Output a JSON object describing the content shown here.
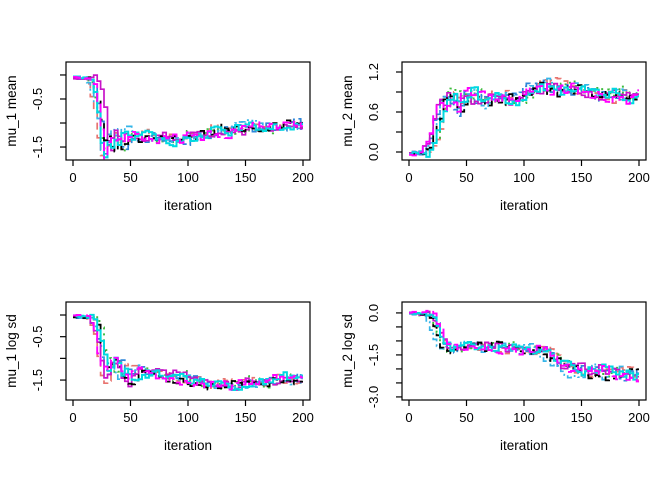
{
  "figure": {
    "background": "#ffffff",
    "axis_color": "#000000",
    "tick_font_size": 13,
    "title_font_size": 13.5
  },
  "series_style": [
    {
      "name": "chain-salmon",
      "color": "#E8736F",
      "dash": "7,5",
      "width": 1.7
    },
    {
      "name": "chain-green",
      "color": "#3CBB3C",
      "dash": "2,4",
      "width": 1.9
    },
    {
      "name": "chain-blue",
      "color": "#2E86D9",
      "dash": "8,4",
      "width": 1.7
    },
    {
      "name": "chain-skyblue",
      "color": "#35B5E8",
      "dash": "2,3,7,3",
      "width": 1.7
    },
    {
      "name": "chain-darkmagenta",
      "color": "#C813C8",
      "dash": "",
      "width": 1.7
    },
    {
      "name": "chain-black",
      "color": "#000000",
      "dash": "8,5",
      "width": 1.8
    },
    {
      "name": "chain-cyan",
      "color": "#00D9E0",
      "dash": "",
      "width": 2.0
    },
    {
      "name": "chain-magenta",
      "color": "#FF00FF",
      "dash": "9,5",
      "width": 1.9
    }
  ],
  "gen": {
    "hold": 3,
    "seed": 1234,
    "ar": 0.55
  },
  "chart_data": [
    {
      "type": "line",
      "ylabel": "mu_1 mean",
      "xlabel": "iteration",
      "xlim": [
        0,
        200
      ],
      "xticks": [
        {
          "v": 0,
          "label": "0"
        },
        {
          "v": 50,
          "label": "50"
        },
        {
          "v": 100,
          "label": "100"
        },
        {
          "v": 150,
          "label": "150"
        },
        {
          "v": 200,
          "label": "200"
        }
      ],
      "ylim": [
        -1.77,
        0.27
      ],
      "yticks": [
        {
          "v": 0.0,
          "label": ""
        },
        {
          "v": -0.5,
          "label": "-0.5"
        },
        {
          "v": -1.0,
          "label": ""
        },
        {
          "v": -1.5,
          "label": "-1.5"
        }
      ],
      "trend": [
        [
          0,
          -0.06
        ],
        [
          13,
          -0.07
        ],
        [
          17,
          -0.18
        ],
        [
          21,
          -0.55
        ],
        [
          24,
          -1.0
        ],
        [
          26,
          -1.45
        ],
        [
          28,
          -1.6
        ],
        [
          30,
          -1.3
        ],
        [
          34,
          -1.38
        ],
        [
          40,
          -1.3
        ],
        [
          46,
          -1.33
        ],
        [
          52,
          -1.28
        ],
        [
          58,
          -1.32
        ],
        [
          64,
          -1.3
        ],
        [
          70,
          -1.28
        ],
        [
          76,
          -1.32
        ],
        [
          82,
          -1.35
        ],
        [
          88,
          -1.38
        ],
        [
          94,
          -1.32
        ],
        [
          100,
          -1.28
        ],
        [
          106,
          -1.32
        ],
        [
          112,
          -1.25
        ],
        [
          118,
          -1.22
        ],
        [
          124,
          -1.18
        ],
        [
          130,
          -1.15
        ],
        [
          138,
          -1.12
        ],
        [
          146,
          -1.1
        ],
        [
          154,
          -1.08
        ],
        [
          162,
          -1.05
        ],
        [
          172,
          -1.06
        ],
        [
          182,
          -1.04
        ],
        [
          192,
          -1.05
        ],
        [
          200,
          -1.05
        ]
      ],
      "noise": 0.1,
      "burst": {
        "x0": 21,
        "x1": 46,
        "factor": 2.0
      },
      "xjitter": 5
    },
    {
      "type": "line",
      "ylabel": "mu_2 mean",
      "xlabel": "iteration",
      "xlim": [
        0,
        200
      ],
      "xticks": [
        {
          "v": 0,
          "label": "0"
        },
        {
          "v": 50,
          "label": "50"
        },
        {
          "v": 100,
          "label": "100"
        },
        {
          "v": 150,
          "label": "150"
        },
        {
          "v": 200,
          "label": "200"
        }
      ],
      "ylim": [
        -0.12,
        1.35
      ],
      "yticks": [
        {
          "v": 0.0,
          "label": "0.0"
        },
        {
          "v": 0.3,
          "label": ""
        },
        {
          "v": 0.6,
          "label": "0.6"
        },
        {
          "v": 0.9,
          "label": ""
        },
        {
          "v": 1.2,
          "label": "1.2"
        }
      ],
      "trend": [
        [
          0,
          -0.02
        ],
        [
          12,
          -0.02
        ],
        [
          16,
          0.05
        ],
        [
          20,
          0.18
        ],
        [
          24,
          0.45
        ],
        [
          27,
          0.62
        ],
        [
          30,
          0.75
        ],
        [
          34,
          0.72
        ],
        [
          38,
          0.78
        ],
        [
          42,
          0.75
        ],
        [
          46,
          0.72
        ],
        [
          50,
          0.88
        ],
        [
          54,
          0.92
        ],
        [
          58,
          0.82
        ],
        [
          62,
          0.8
        ],
        [
          68,
          0.78
        ],
        [
          74,
          0.82
        ],
        [
          80,
          0.8
        ],
        [
          86,
          0.84
        ],
        [
          92,
          0.8
        ],
        [
          98,
          0.86
        ],
        [
          104,
          0.9
        ],
        [
          110,
          0.94
        ],
        [
          116,
          0.96
        ],
        [
          122,
          1.0
        ],
        [
          128,
          0.94
        ],
        [
          134,
          0.92
        ],
        [
          140,
          0.9
        ],
        [
          146,
          0.94
        ],
        [
          152,
          0.92
        ],
        [
          158,
          0.92
        ],
        [
          164,
          0.88
        ],
        [
          170,
          0.86
        ],
        [
          178,
          0.86
        ],
        [
          186,
          0.85
        ],
        [
          194,
          0.85
        ],
        [
          200,
          0.84
        ]
      ],
      "noise": 0.09,
      "burst": {
        "x0": 20,
        "x1": 42,
        "factor": 1.6
      },
      "xjitter": 5
    },
    {
      "type": "line",
      "ylabel": "mu_1 log sd",
      "xlabel": "iteration",
      "xlim": [
        0,
        200
      ],
      "xticks": [
        {
          "v": 0,
          "label": "0"
        },
        {
          "v": 50,
          "label": "50"
        },
        {
          "v": 100,
          "label": "100"
        },
        {
          "v": 150,
          "label": "150"
        },
        {
          "v": 200,
          "label": "200"
        }
      ],
      "ylim": [
        -1.96,
        0.3
      ],
      "yticks": [
        {
          "v": 0.0,
          "label": ""
        },
        {
          "v": -0.5,
          "label": "-0.5"
        },
        {
          "v": -1.0,
          "label": ""
        },
        {
          "v": -1.5,
          "label": "-1.5"
        }
      ],
      "trend": [
        [
          0,
          -0.03
        ],
        [
          14,
          -0.05
        ],
        [
          18,
          -0.22
        ],
        [
          22,
          -0.6
        ],
        [
          25,
          -1.05
        ],
        [
          28,
          -1.4
        ],
        [
          31,
          -1.25
        ],
        [
          35,
          -1.18
        ],
        [
          40,
          -1.28
        ],
        [
          46,
          -1.38
        ],
        [
          50,
          -1.45
        ],
        [
          54,
          -1.32
        ],
        [
          60,
          -1.3
        ],
        [
          66,
          -1.35
        ],
        [
          72,
          -1.38
        ],
        [
          78,
          -1.42
        ],
        [
          84,
          -1.45
        ],
        [
          90,
          -1.42
        ],
        [
          96,
          -1.48
        ],
        [
          102,
          -1.5
        ],
        [
          108,
          -1.52
        ],
        [
          114,
          -1.55
        ],
        [
          120,
          -1.58
        ],
        [
          126,
          -1.62
        ],
        [
          132,
          -1.6
        ],
        [
          138,
          -1.62
        ],
        [
          144,
          -1.58
        ],
        [
          150,
          -1.55
        ],
        [
          156,
          -1.52
        ],
        [
          162,
          -1.55
        ],
        [
          168,
          -1.52
        ],
        [
          174,
          -1.5
        ],
        [
          180,
          -1.46
        ],
        [
          186,
          -1.48
        ],
        [
          192,
          -1.5
        ],
        [
          200,
          -1.5
        ]
      ],
      "noise": 0.1,
      "burst": {
        "x0": 21,
        "x1": 50,
        "factor": 1.9
      },
      "xjitter": 5
    },
    {
      "type": "line",
      "ylabel": "mu_2 log sd",
      "xlabel": "iteration",
      "xlim": [
        0,
        200
      ],
      "xticks": [
        {
          "v": 0,
          "label": "0"
        },
        {
          "v": 50,
          "label": "50"
        },
        {
          "v": 100,
          "label": "100"
        },
        {
          "v": 150,
          "label": "150"
        },
        {
          "v": 200,
          "label": "200"
        }
      ],
      "ylim": [
        -3.11,
        0.39
      ],
      "yticks": [
        {
          "v": 0.0,
          "label": "0.0"
        },
        {
          "v": -0.5,
          "label": ""
        },
        {
          "v": -1.0,
          "label": ""
        },
        {
          "v": -1.5,
          "label": "-1.5"
        },
        {
          "v": -2.0,
          "label": ""
        },
        {
          "v": -2.5,
          "label": ""
        },
        {
          "v": -3.0,
          "label": "-3.0"
        }
      ],
      "trend": [
        [
          0,
          -0.02
        ],
        [
          14,
          -0.05
        ],
        [
          18,
          -0.2
        ],
        [
          22,
          -0.6
        ],
        [
          26,
          -1.05
        ],
        [
          30,
          -1.3
        ],
        [
          34,
          -1.35
        ],
        [
          38,
          -1.25
        ],
        [
          44,
          -1.18
        ],
        [
          50,
          -1.15
        ],
        [
          56,
          -1.22
        ],
        [
          62,
          -1.18
        ],
        [
          68,
          -1.25
        ],
        [
          74,
          -1.2
        ],
        [
          80,
          -1.25
        ],
        [
          86,
          -1.18
        ],
        [
          92,
          -1.3
        ],
        [
          98,
          -1.25
        ],
        [
          104,
          -1.32
        ],
        [
          110,
          -1.25
        ],
        [
          116,
          -1.38
        ],
        [
          122,
          -1.55
        ],
        [
          128,
          -1.75
        ],
        [
          134,
          -1.95
        ],
        [
          140,
          -2.05
        ],
        [
          146,
          -2.1
        ],
        [
          152,
          -2.12
        ],
        [
          158,
          -2.05
        ],
        [
          164,
          -2.0
        ],
        [
          170,
          -2.15
        ],
        [
          176,
          -2.1
        ],
        [
          182,
          -2.15
        ],
        [
          188,
          -2.2
        ],
        [
          194,
          -2.25
        ],
        [
          200,
          -2.28
        ]
      ],
      "noise": 0.15,
      "burst": {
        "x0": 118,
        "x1": 200,
        "factor": 1.35
      },
      "xjitter": 5
    }
  ]
}
